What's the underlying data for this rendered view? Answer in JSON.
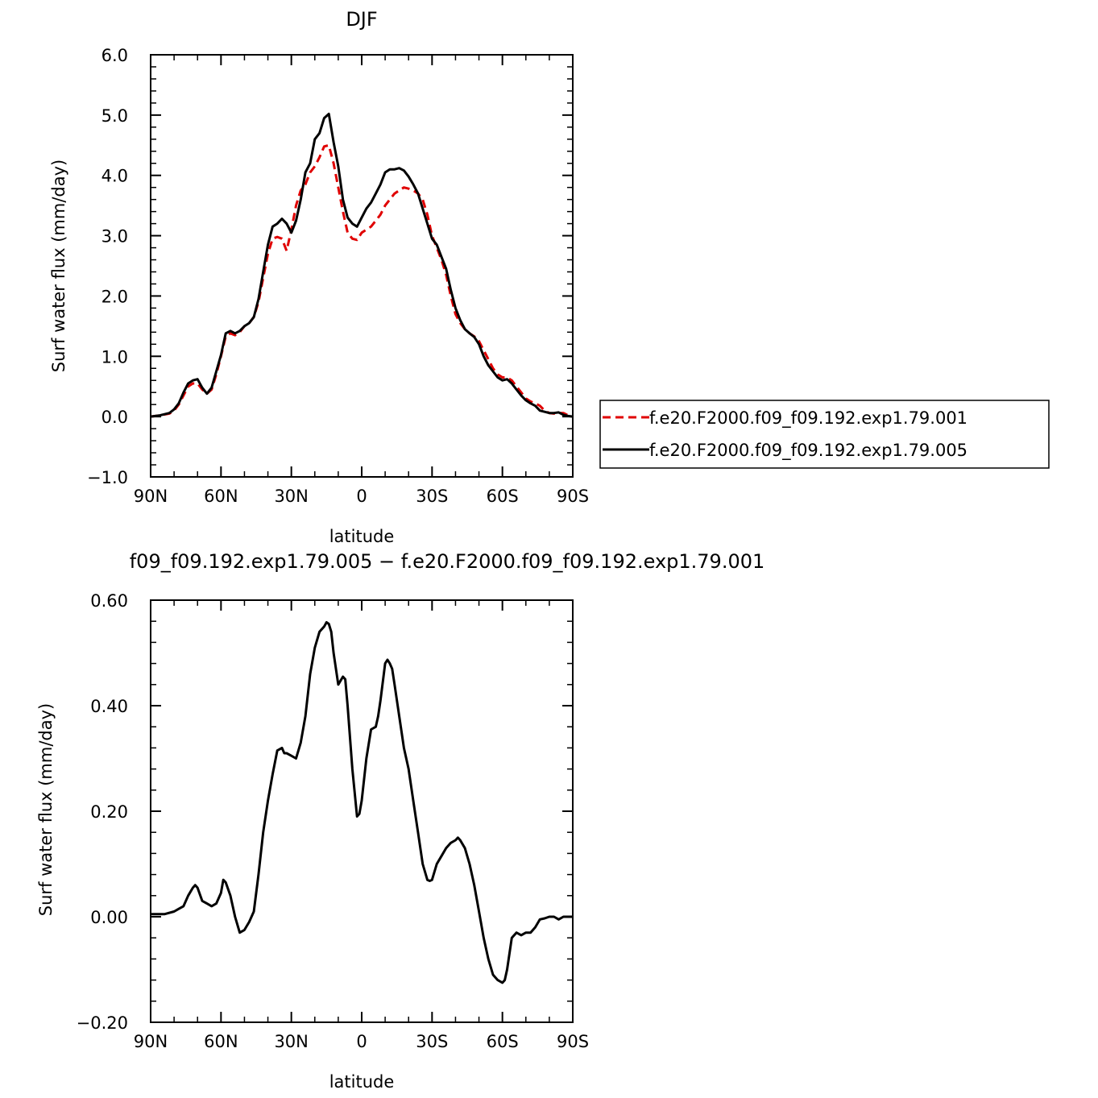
{
  "chart_data": [
    {
      "type": "line",
      "title": "DJF",
      "xlabel": "latitude",
      "ylabel": "Surf water flux (mm/day)",
      "xlim": [
        90,
        -90
      ],
      "ylim": [
        -1.0,
        6.0
      ],
      "x_ticks": [
        {
          "value": 90,
          "label": "90N"
        },
        {
          "value": 60,
          "label": "60N"
        },
        {
          "value": 30,
          "label": "30N"
        },
        {
          "value": 0,
          "label": "0"
        },
        {
          "value": -30,
          "label": "30S"
        },
        {
          "value": -60,
          "label": "60S"
        },
        {
          "value": -90,
          "label": "90S"
        }
      ],
      "y_ticks": [
        {
          "value": -1.0,
          "label": "−1.0"
        },
        {
          "value": 0.0,
          "label": "0.0"
        },
        {
          "value": 1.0,
          "label": "1.0"
        },
        {
          "value": 2.0,
          "label": "2.0"
        },
        {
          "value": 3.0,
          "label": "3.0"
        },
        {
          "value": 4.0,
          "label": "4.0"
        },
        {
          "value": 5.0,
          "label": "5.0"
        },
        {
          "value": 6.0,
          "label": "6.0"
        }
      ],
      "legend_placement": "right",
      "series": [
        {
          "name": "f.e20.F2000.f09_f09.192.exp1.79.001",
          "color": "#e00000",
          "dash": "dashed",
          "x": [
            90,
            86,
            82,
            80,
            78,
            76,
            74,
            72,
            70,
            68,
            66,
            64,
            62,
            60,
            58,
            56,
            54,
            52,
            50,
            48,
            46,
            44,
            42,
            40,
            38,
            36,
            34,
            32,
            30,
            28,
            26,
            24,
            22,
            20,
            18,
            16,
            14,
            12,
            10,
            8,
            6,
            4,
            2,
            0,
            -2,
            -4,
            -6,
            -8,
            -10,
            -12,
            -14,
            -16,
            -18,
            -20,
            -22,
            -24,
            -26,
            -28,
            -30,
            -32,
            -34,
            -36,
            -38,
            -40,
            -42,
            -44,
            -46,
            -48,
            -50,
            -52,
            -54,
            -56,
            -58,
            -60,
            -62,
            -64,
            -66,
            -68,
            -70,
            -72,
            -74,
            -76,
            -78,
            -80,
            -82,
            -84,
            -86,
            -88,
            -90
          ],
          "y": [
            0.0,
            0.02,
            0.05,
            0.1,
            0.2,
            0.35,
            0.5,
            0.55,
            0.55,
            0.45,
            0.38,
            0.45,
            0.7,
            1.0,
            1.33,
            1.38,
            1.35,
            1.4,
            1.5,
            1.55,
            1.65,
            1.9,
            2.3,
            2.7,
            2.95,
            2.98,
            2.95,
            2.75,
            3.1,
            3.5,
            3.75,
            3.85,
            4.05,
            4.15,
            4.3,
            4.48,
            4.5,
            4.2,
            3.8,
            3.4,
            3.05,
            2.95,
            2.93,
            3.05,
            3.1,
            3.15,
            3.25,
            3.35,
            3.5,
            3.6,
            3.7,
            3.75,
            3.8,
            3.78,
            3.75,
            3.7,
            3.6,
            3.35,
            3.0,
            2.8,
            2.6,
            2.35,
            2.0,
            1.7,
            1.55,
            1.45,
            1.38,
            1.33,
            1.25,
            1.1,
            0.95,
            0.8,
            0.7,
            0.65,
            0.65,
            0.6,
            0.5,
            0.4,
            0.3,
            0.25,
            0.22,
            0.18,
            0.1,
            0.06,
            0.05,
            0.06,
            0.06,
            0.02,
            0.0
          ]
        },
        {
          "name": "f.e20.F2000.f09_f09.192.exp1.79.005",
          "color": "#000000",
          "dash": "solid",
          "x": [
            90,
            86,
            82,
            80,
            78,
            76,
            74,
            72,
            70,
            68,
            66,
            64,
            62,
            60,
            58,
            56,
            54,
            52,
            50,
            48,
            46,
            44,
            42,
            40,
            38,
            36,
            34,
            32,
            30,
            28,
            26,
            24,
            22,
            20,
            18,
            16,
            14,
            12,
            10,
            8,
            6,
            4,
            2,
            0,
            -2,
            -4,
            -6,
            -8,
            -10,
            -12,
            -14,
            -16,
            -18,
            -20,
            -22,
            -24,
            -26,
            -28,
            -30,
            -32,
            -34,
            -36,
            -38,
            -40,
            -42,
            -44,
            -46,
            -48,
            -50,
            -52,
            -54,
            -56,
            -58,
            -60,
            -62,
            -64,
            -66,
            -68,
            -70,
            -72,
            -74,
            -76,
            -78,
            -80,
            -82,
            -84,
            -86,
            -88,
            -90
          ],
          "y": [
            0.0,
            0.02,
            0.06,
            0.12,
            0.22,
            0.4,
            0.55,
            0.6,
            0.62,
            0.48,
            0.38,
            0.48,
            0.75,
            1.02,
            1.38,
            1.42,
            1.38,
            1.42,
            1.5,
            1.55,
            1.65,
            1.95,
            2.4,
            2.85,
            3.15,
            3.2,
            3.28,
            3.2,
            3.05,
            3.25,
            3.6,
            4.05,
            4.2,
            4.6,
            4.7,
            4.95,
            5.02,
            4.55,
            4.15,
            3.6,
            3.3,
            3.2,
            3.15,
            3.3,
            3.45,
            3.55,
            3.7,
            3.85,
            4.05,
            4.1,
            4.1,
            4.12,
            4.08,
            3.98,
            3.85,
            3.7,
            3.45,
            3.2,
            2.95,
            2.85,
            2.65,
            2.45,
            2.1,
            1.8,
            1.6,
            1.45,
            1.38,
            1.32,
            1.2,
            1.0,
            0.85,
            0.75,
            0.65,
            0.6,
            0.62,
            0.55,
            0.45,
            0.35,
            0.27,
            0.22,
            0.18,
            0.1,
            0.08,
            0.06,
            0.06,
            0.07,
            0.03,
            0.01,
            0.0
          ]
        }
      ]
    },
    {
      "type": "line",
      "title": "f09_f09.192.exp1.79.005 − f.e20.F2000.f09_f09.192.exp1.79.001",
      "xlabel": "latitude",
      "ylabel": "Surf water flux (mm/day)",
      "xlim": [
        90,
        -90
      ],
      "ylim": [
        -0.2,
        0.6
      ],
      "x_ticks": [
        {
          "value": 90,
          "label": "90N"
        },
        {
          "value": 60,
          "label": "60N"
        },
        {
          "value": 30,
          "label": "30N"
        },
        {
          "value": 0,
          "label": "0"
        },
        {
          "value": -30,
          "label": "30S"
        },
        {
          "value": -60,
          "label": "60S"
        },
        {
          "value": -90,
          "label": "90S"
        }
      ],
      "y_ticks": [
        {
          "value": -0.2,
          "label": "−0.20"
        },
        {
          "value": 0.0,
          "label": "0.00"
        },
        {
          "value": 0.2,
          "label": "0.20"
        },
        {
          "value": 0.4,
          "label": "0.40"
        },
        {
          "value": 0.6,
          "label": "0.60"
        }
      ],
      "series": [
        {
          "color": "#000000",
          "dash": "solid",
          "x": [
            90,
            84,
            80,
            78,
            76,
            74,
            72,
            71,
            70,
            68,
            66,
            64,
            62,
            60,
            59,
            58,
            56,
            54,
            52,
            50,
            48,
            46,
            44,
            42,
            40,
            38,
            36,
            34,
            33,
            32,
            30,
            28,
            26,
            24,
            22,
            20,
            18,
            16,
            15,
            14,
            13,
            12,
            10,
            8,
            7,
            6,
            4,
            2,
            1,
            0,
            -2,
            -4,
            -6,
            -7,
            -8,
            -10,
            -11,
            -12,
            -13,
            -14,
            -16,
            -18,
            -20,
            -22,
            -24,
            -26,
            -28,
            -29,
            -30,
            -32,
            -34,
            -36,
            -38,
            -40,
            -41,
            -42,
            -44,
            -46,
            -48,
            -50,
            -52,
            -54,
            -56,
            -58,
            -60,
            -61,
            -62,
            -64,
            -66,
            -68,
            -70,
            -72,
            -74,
            -76,
            -78,
            -80,
            -82,
            -84,
            -86,
            -88,
            -90
          ],
          "y": [
            0.005,
            0.005,
            0.01,
            0.015,
            0.02,
            0.04,
            0.055,
            0.06,
            0.055,
            0.03,
            0.025,
            0.02,
            0.025,
            0.045,
            0.07,
            0.065,
            0.04,
            0.0,
            -0.03,
            -0.025,
            -0.01,
            0.01,
            0.08,
            0.16,
            0.22,
            0.27,
            0.315,
            0.32,
            0.31,
            0.31,
            0.305,
            0.3,
            0.33,
            0.38,
            0.46,
            0.51,
            0.54,
            0.55,
            0.558,
            0.555,
            0.54,
            0.5,
            0.44,
            0.455,
            0.45,
            0.4,
            0.28,
            0.19,
            0.195,
            0.22,
            0.3,
            0.355,
            0.36,
            0.38,
            0.41,
            0.48,
            0.487,
            0.48,
            0.47,
            0.44,
            0.38,
            0.32,
            0.28,
            0.22,
            0.16,
            0.1,
            0.07,
            0.068,
            0.07,
            0.1,
            0.115,
            0.13,
            0.14,
            0.145,
            0.15,
            0.145,
            0.13,
            0.1,
            0.06,
            0.01,
            -0.04,
            -0.08,
            -0.11,
            -0.12,
            -0.125,
            -0.12,
            -0.1,
            -0.04,
            -0.03,
            -0.035,
            -0.03,
            -0.03,
            -0.02,
            -0.005,
            -0.003,
            0.0,
            0.0,
            -0.005,
            0.0,
            0.0,
            0.0
          ]
        }
      ]
    }
  ]
}
